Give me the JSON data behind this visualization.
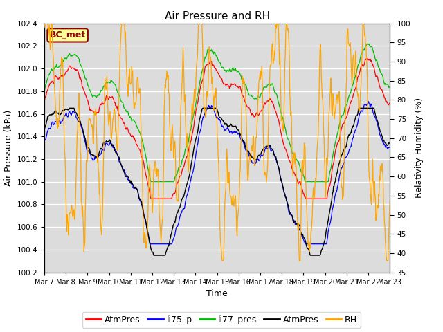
{
  "title": "Air Pressure and RH",
  "xlabel": "Time",
  "ylabel_left": "Air Pressure (kPa)",
  "ylabel_right": "Relativity Humidity (%)",
  "ylim_left": [
    100.2,
    102.4
  ],
  "ylim_right": [
    35,
    100
  ],
  "yticks_left": [
    100.2,
    100.4,
    100.6,
    100.8,
    101.0,
    101.2,
    101.4,
    101.6,
    101.8,
    102.0,
    102.2,
    102.4
  ],
  "yticks_right": [
    35,
    40,
    45,
    50,
    55,
    60,
    65,
    70,
    75,
    80,
    85,
    90,
    95,
    100
  ],
  "colors": {
    "AtmPres_red": "#FF0000",
    "li75_p_blue": "#0000FF",
    "li77_pres_green": "#00BB00",
    "AtmPres_black": "#000000",
    "RH_orange": "#FFA500"
  },
  "legend_labels": [
    "AtmPres",
    "li75_p",
    "li77_pres",
    "AtmPres",
    "RH"
  ],
  "legend_colors": [
    "#FF0000",
    "#0000FF",
    "#00BB00",
    "#000000",
    "#FFA500"
  ],
  "annotation_text": "BC_met",
  "annotation_fg": "#8B0000",
  "annotation_bg": "#FFFF99",
  "background_color": "#DCDCDC",
  "grid_color": "#FFFFFF",
  "title_fontsize": 11,
  "axis_label_fontsize": 9,
  "tick_fontsize": 7.5,
  "legend_fontsize": 9
}
